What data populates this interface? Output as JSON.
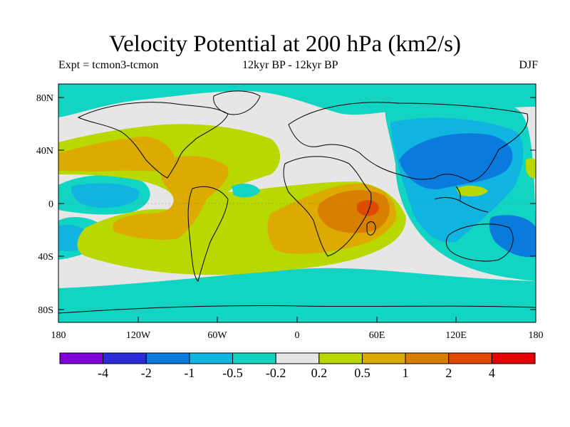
{
  "header": {
    "title": "Velocity Potential at 200 hPa (km2/s)",
    "expt": "Expt = tcmon3-tcmon",
    "period": "12kyr BP - 12kyr BP",
    "season": "DJF"
  },
  "map": {
    "lat_ticks": [
      "80N",
      "40N",
      "0",
      "40S",
      "80S"
    ],
    "lon_ticks": [
      "180",
      "120W",
      "60W",
      "0",
      "60E",
      "120E",
      "180"
    ]
  },
  "colorbar": {
    "colors": [
      "#7f00d8",
      "#2b2bd8",
      "#0a7bdc",
      "#0fb4e1",
      "#12d4c3",
      "#e6e6e6",
      "#b9d800",
      "#dcaa00",
      "#d97f00",
      "#e04a00",
      "#e60000"
    ],
    "labels": [
      "-4",
      "-2",
      "-1",
      "-0.5",
      "-0.2",
      "0.2",
      "0.5",
      "1",
      "2",
      "4"
    ]
  }
}
